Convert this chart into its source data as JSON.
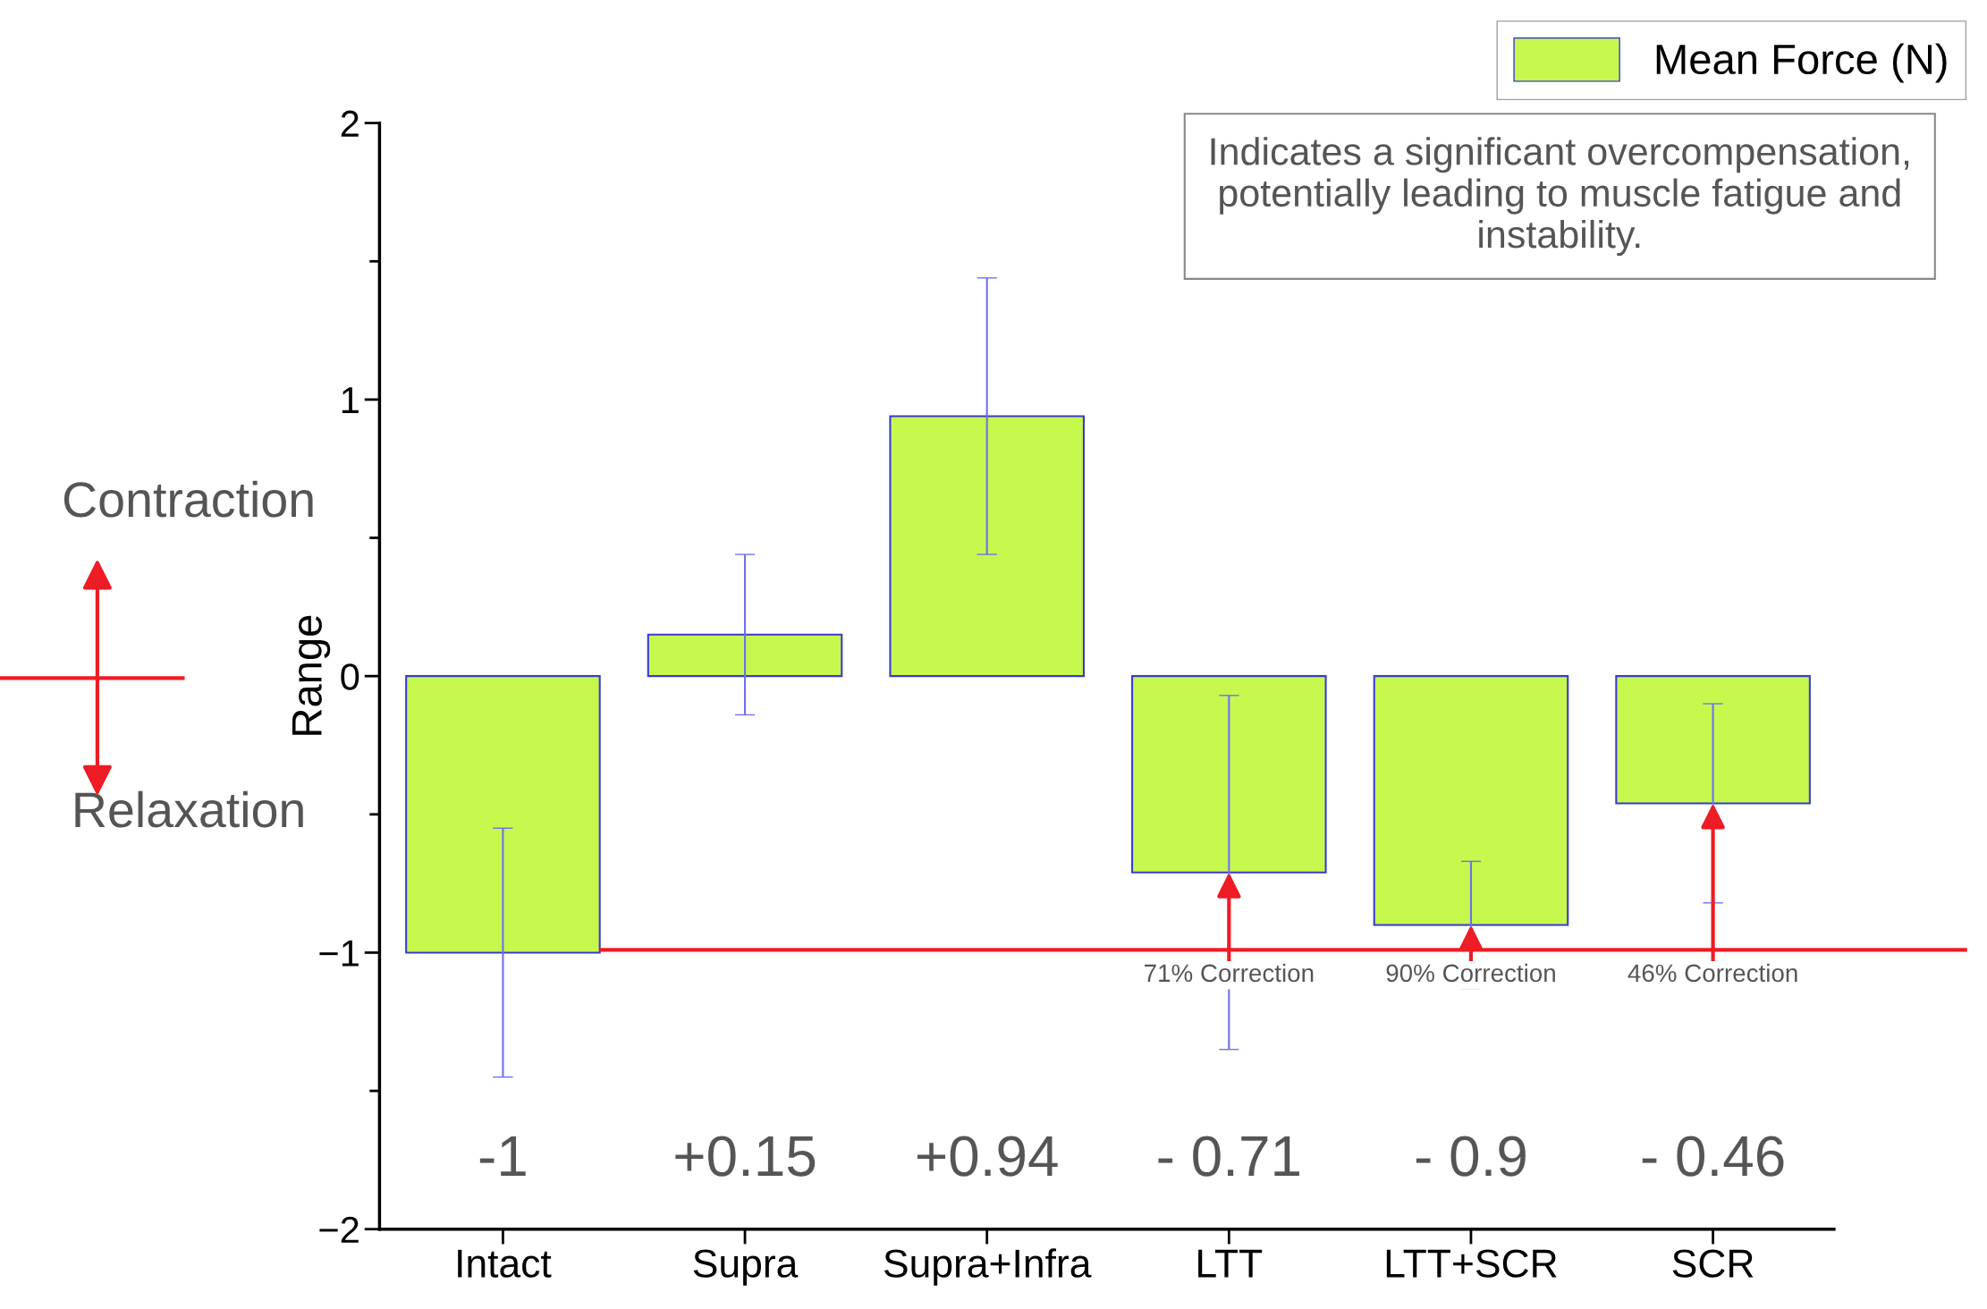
{
  "chart_data": {
    "type": "bar",
    "ylabel": "Range",
    "categories": [
      "Intact",
      "Supra",
      "Supra+Infra",
      "LTT",
      "LTT+SCR",
      "SCR"
    ],
    "series": [
      {
        "name": "Mean Force (N)",
        "color": "#c6f84e",
        "values": [
          -1,
          0.15,
          0.94,
          -0.71,
          -0.9,
          -0.46
        ],
        "errors": [
          0.45,
          0.29,
          0.5,
          0.64,
          0.23,
          0.36
        ]
      }
    ],
    "ylim": [
      -2,
      2
    ],
    "yticks": [
      {
        "value": -2,
        "label": "−2"
      },
      {
        "value": -1.5,
        "label": null
      },
      {
        "value": -1,
        "label": "−1"
      },
      {
        "value": -0.5,
        "label": null
      },
      0,
      {
        "value": 0.5,
        "label": null
      },
      1,
      {
        "value": 1.5,
        "label": null
      },
      2
    ],
    "ref_lines": [
      {
        "axis": "y",
        "value": -0.99,
        "color": "#ee1c25"
      }
    ],
    "annotations": [
      "Indicates a significant overcompensation, potentially leading to muscle fatigue and instability.",
      "Contraction",
      "Relaxation",
      "-1",
      "+0.15",
      "+0.94",
      "- 0.71",
      "- 0.9",
      "- 0.46",
      {
        "text": "71% Correction",
        "x": "LTT",
        "y": -0.71
      },
      {
        "text": "90% Correction",
        "x": "LTT+SCR",
        "y": -0.9
      },
      {
        "text": "46% Correction",
        "x": "SCR",
        "y": -0.46
      }
    ],
    "legend": "top right",
    "grid": false
  }
}
